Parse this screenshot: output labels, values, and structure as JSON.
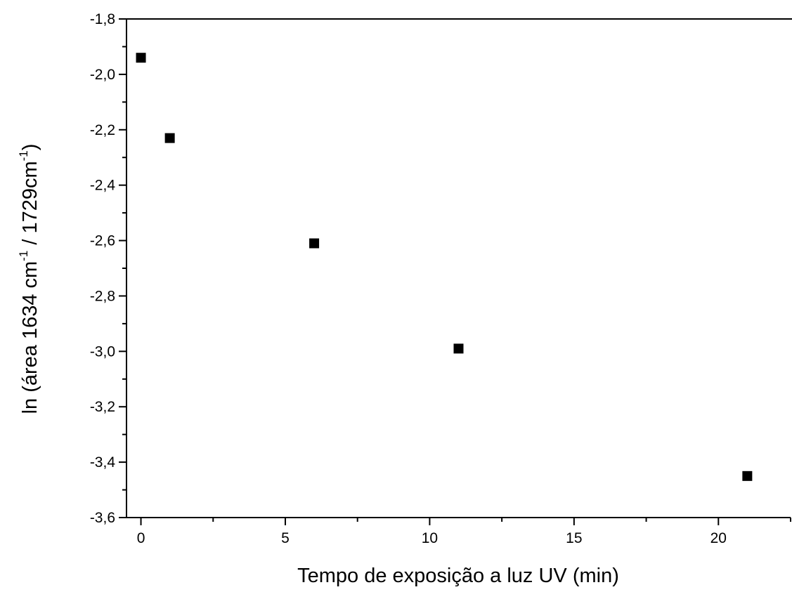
{
  "chart_data": {
    "type": "scatter",
    "title": "",
    "xlabel": "Tempo de exposição a luz UV (min)",
    "ylabel": {
      "prefix": "ln (área 1634 cm",
      "sup1": "-1",
      "middle": " / 1729cm",
      "sup2": "-1",
      "suffix": ")"
    },
    "xlim": [
      -0.5,
      22.5
    ],
    "ylim": [
      -3.6,
      -1.8
    ],
    "x_ticks": [
      0,
      5,
      10,
      15,
      20
    ],
    "x_tick_labels": [
      "0",
      "5",
      "10",
      "15",
      "20"
    ],
    "x_minor_ticks": [
      2.5,
      7.5,
      12.5,
      17.5,
      22.5
    ],
    "y_ticks": [
      -3.6,
      -3.4,
      -3.2,
      -3.0,
      -2.8,
      -2.6,
      -2.4,
      -2.2,
      -2.0,
      -1.8
    ],
    "y_tick_labels": [
      "-3,6",
      "-3,4",
      "-3,2",
      "-3,0",
      "-2,8",
      "-2,6",
      "-2,4",
      "-2,2",
      "-2,0",
      "-1,8"
    ],
    "y_minor_ticks": [
      -3.5,
      -3.3,
      -3.1,
      -2.9,
      -2.7,
      -2.5,
      -2.3,
      -2.1,
      -1.9
    ],
    "grid": false,
    "marker": "square",
    "marker_color": "#000000",
    "series": [
      {
        "x": [
          0,
          1,
          6,
          11,
          21
        ],
        "y": [
          -1.94,
          -2.23,
          -2.61,
          -2.99,
          -3.45
        ]
      }
    ]
  }
}
